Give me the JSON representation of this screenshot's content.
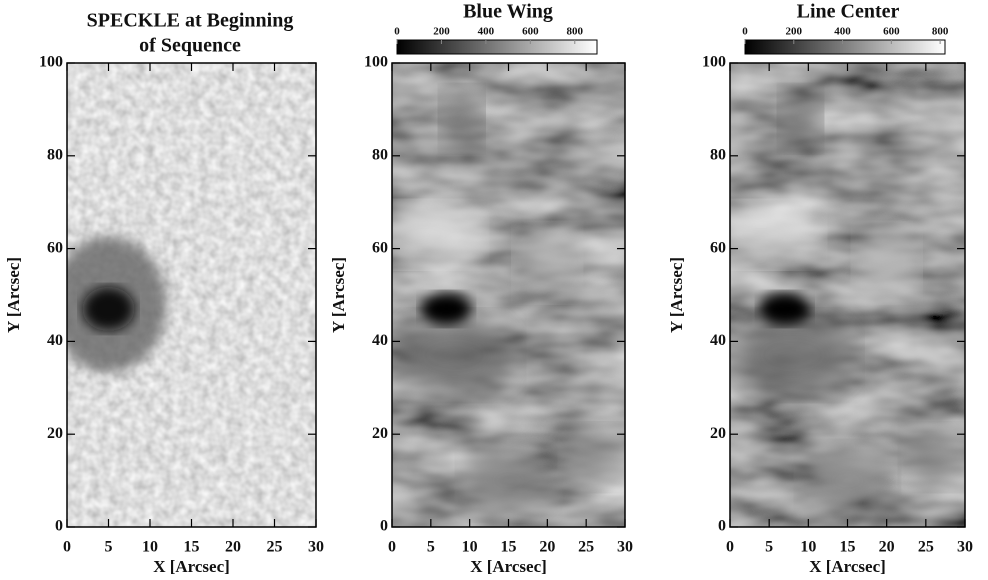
{
  "chart_data": [
    {
      "type": "image",
      "title": [
        "SPECKLE at Beginning",
        "of Sequence"
      ],
      "xlabel": "X [Arcsec]",
      "ylabel": "Y [Arcsec]",
      "xlim": [
        0,
        30
      ],
      "ylim": [
        0,
        100
      ],
      "xticks": [
        0,
        5,
        10,
        15,
        20,
        25,
        30
      ],
      "yticks": [
        0,
        20,
        40,
        60,
        80,
        100
      ]
    },
    {
      "type": "image",
      "title": [
        "Blue Wing"
      ],
      "xlabel": "X [Arcsec]",
      "ylabel": "Y [Arcsec]",
      "xlim": [
        0,
        30
      ],
      "ylim": [
        0,
        100
      ],
      "xticks": [
        0,
        5,
        10,
        15,
        20,
        25,
        30
      ],
      "yticks": [
        0,
        20,
        40,
        60,
        80,
        100
      ],
      "colorbar": {
        "lim": [
          0,
          900
        ],
        "ticks": [
          0,
          200,
          400,
          600,
          800
        ]
      }
    },
    {
      "type": "image",
      "title": [
        "Line Center"
      ],
      "xlabel": "X [Arcsec]",
      "ylabel": "Y [Arcsec]",
      "xlim": [
        0,
        30
      ],
      "ylim": [
        0,
        100
      ],
      "xticks": [
        0,
        5,
        10,
        15,
        20,
        25,
        30
      ],
      "yticks": [
        0,
        20,
        40,
        60,
        80,
        100
      ],
      "colorbar": {
        "lim": [
          0,
          820
        ],
        "ticks": [
          0,
          200,
          400,
          600,
          800
        ]
      }
    }
  ]
}
